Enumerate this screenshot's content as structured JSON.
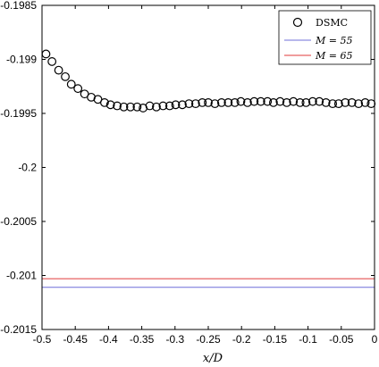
{
  "chart_data": {
    "type": "scatter",
    "xlabel": "x/D",
    "ylabel": "",
    "xlim": [
      -0.5,
      0
    ],
    "ylim": [
      -0.2015,
      -0.1985
    ],
    "x_ticks": [
      "-0.5",
      "-0.45",
      "-0.4",
      "-0.35",
      "-0.3",
      "-0.25",
      "-0.2",
      "-0.15",
      "-0.1",
      "-0.05",
      "0"
    ],
    "y_ticks": [
      "-0.1985",
      "-0.199",
      "-0.1995",
      "-0.2",
      "-0.2005",
      "-0.201",
      "-0.2015"
    ],
    "grid": false,
    "legend_position": "top-right",
    "series": [
      {
        "name": "DSMC",
        "style": "markers",
        "marker": "circle-open",
        "color": "#000000",
        "x": [
          -0.494,
          -0.485,
          -0.475,
          -0.465,
          -0.456,
          -0.446,
          -0.436,
          -0.426,
          -0.416,
          -0.406,
          -0.397,
          -0.387,
          -0.377,
          -0.367,
          -0.357,
          -0.348,
          -0.338,
          -0.328,
          -0.318,
          -0.308,
          -0.299,
          -0.289,
          -0.279,
          -0.269,
          -0.259,
          -0.25,
          -0.24,
          -0.23,
          -0.22,
          -0.21,
          -0.201,
          -0.191,
          -0.181,
          -0.171,
          -0.161,
          -0.152,
          -0.142,
          -0.132,
          -0.122,
          -0.112,
          -0.103,
          -0.093,
          -0.083,
          -0.073,
          -0.063,
          -0.054,
          -0.044,
          -0.034,
          -0.024,
          -0.014,
          -0.005
        ],
        "values": [
          -0.19895,
          -0.19902,
          -0.1991,
          -0.19916,
          -0.19923,
          -0.19927,
          -0.19932,
          -0.19935,
          -0.19937,
          -0.1994,
          -0.19942,
          -0.19943,
          -0.19944,
          -0.19944,
          -0.19944,
          -0.19945,
          -0.19943,
          -0.19944,
          -0.19943,
          -0.19943,
          -0.19942,
          -0.19942,
          -0.19941,
          -0.19941,
          -0.1994,
          -0.1994,
          -0.19941,
          -0.1994,
          -0.1994,
          -0.1994,
          -0.19939,
          -0.1994,
          -0.19939,
          -0.19939,
          -0.19939,
          -0.1994,
          -0.19939,
          -0.1994,
          -0.19939,
          -0.1994,
          -0.1994,
          -0.19939,
          -0.19939,
          -0.1994,
          -0.19941,
          -0.19941,
          -0.1994,
          -0.1994,
          -0.19941,
          -0.1994,
          -0.19941
        ]
      },
      {
        "name": "M = 55",
        "style": "line",
        "color": "#6f6fd9",
        "x": [
          -0.5,
          0
        ],
        "values": [
          -0.20111,
          -0.20111
        ]
      },
      {
        "name": "M = 65",
        "style": "line",
        "color": "#e03a3a",
        "x": [
          -0.5,
          0
        ],
        "values": [
          -0.20103,
          -0.20103
        ]
      }
    ]
  }
}
